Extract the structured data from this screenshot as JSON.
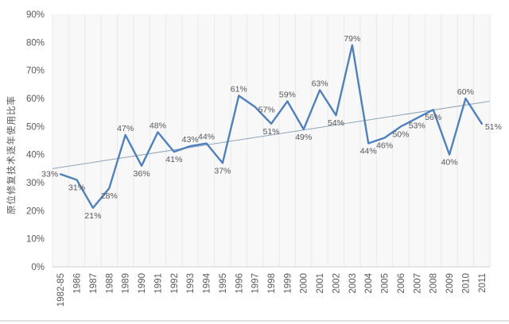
{
  "chart_data": {
    "type": "line",
    "title": "",
    "xlabel": "",
    "ylabel": "原位修复技术逐年使用比率",
    "categories": [
      "1982-85",
      "1986",
      "1987",
      "1988",
      "1989",
      "1990",
      "1991",
      "1992",
      "1993",
      "1994",
      "1995",
      "1996",
      "1997",
      "1998",
      "1999",
      "2000",
      "2001",
      "2002",
      "2003",
      "2004",
      "2005",
      "2006",
      "2007",
      "2008",
      "2009",
      "2010",
      "2011"
    ],
    "values": [
      33,
      31,
      21,
      28,
      47,
      36,
      48,
      41,
      43,
      44,
      37,
      61,
      57,
      51,
      59,
      49,
      63,
      54,
      79,
      44,
      46,
      50,
      53,
      56,
      40,
      60,
      51
    ],
    "value_suffix": "%",
    "label_positions": [
      "left",
      "below",
      "below",
      "below",
      "above",
      "below",
      "above",
      "below",
      "above",
      "above",
      "below",
      "above",
      "right",
      "below",
      "above",
      "below",
      "above",
      "below",
      "above",
      "below",
      "below",
      "below",
      "below",
      "below",
      "below",
      "above",
      "right"
    ],
    "ylim": [
      0,
      90
    ],
    "ytick_step": 10,
    "grid": "vertical-only",
    "legend": "none",
    "data_labels": "on",
    "trendline": {
      "type": "linear",
      "start_value": 35,
      "end_value": 59
    },
    "colors": {
      "series": "#4f81bd",
      "trendline": "#8da4ba",
      "data_label": "#55565c",
      "tick_label": "#595959",
      "axis_title": "#595959",
      "gridline": "#e9e9e9",
      "plot_bg": "#f8f8f8",
      "axis_line": "#d6d6d6",
      "bottom_rule": "#dfdfdf"
    }
  }
}
